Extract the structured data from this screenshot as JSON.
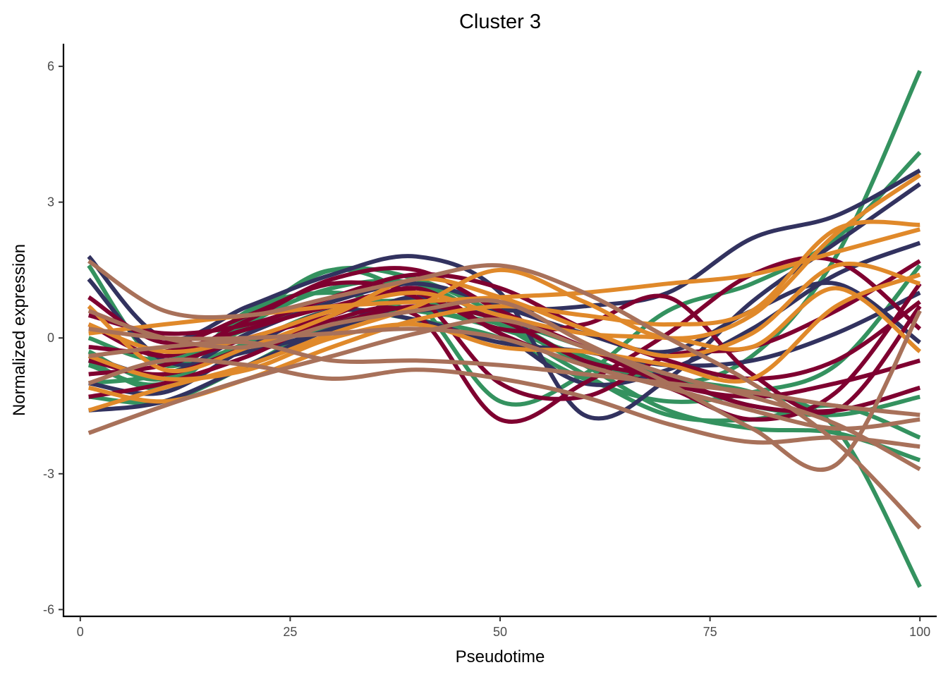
{
  "chart_data": {
    "type": "line",
    "title": "Cluster 3",
    "xlabel": "Pseudotime",
    "ylabel": "Normalized expression",
    "xlim": [
      -2,
      102
    ],
    "ylim": [
      -6.15,
      6.5
    ],
    "x_ticks": [
      0,
      25,
      50,
      75,
      100
    ],
    "x_tick_labels": [
      "0",
      "25",
      "50",
      "75",
      "100"
    ],
    "y_ticks": [
      6,
      3,
      0,
      -3,
      -6
    ],
    "y_tick_labels": [
      "6",
      "3",
      "0",
      "-3",
      "-6"
    ],
    "grid": false,
    "legend": "none",
    "colors": {
      "green": "#34925f",
      "navy": "#32325f",
      "crimson": "#7f0030",
      "orange": "#e0892a",
      "brown": "#a8715a"
    },
    "series": [
      {
        "color": "green",
        "x": [
          1,
          10,
          20,
          30,
          40,
          50,
          60,
          70,
          80,
          90,
          100
        ],
        "y": [
          -1.3,
          -1.4,
          -0.6,
          0.3,
          0.6,
          0.2,
          -0.4,
          -1.0,
          -0.4,
          1.8,
          5.9
        ]
      },
      {
        "color": "green",
        "x": [
          1,
          10,
          20,
          30,
          40,
          50,
          60,
          70,
          80,
          90,
          100
        ],
        "y": [
          1.6,
          -0.6,
          0.5,
          1.5,
          1.3,
          0.5,
          -0.5,
          -0.9,
          -1.2,
          -2.0,
          -5.5
        ]
      },
      {
        "color": "green",
        "x": [
          1,
          10,
          20,
          30,
          40,
          50,
          60,
          70,
          80,
          90,
          100
        ],
        "y": [
          -0.6,
          -1.0,
          0.4,
          1.5,
          0.8,
          -1.4,
          -0.8,
          0.6,
          1.2,
          2.2,
          4.1
        ]
      },
      {
        "color": "green",
        "x": [
          1,
          10,
          20,
          30,
          40,
          50,
          60,
          70,
          80,
          90,
          100
        ],
        "y": [
          -0.3,
          -0.9,
          0.6,
          1.0,
          0.6,
          0.3,
          -0.6,
          -1.6,
          -2.0,
          -2.1,
          -2.7
        ]
      },
      {
        "color": "green",
        "x": [
          1,
          10,
          20,
          30,
          40,
          50,
          60,
          70,
          80,
          90,
          100
        ],
        "y": [
          -1.0,
          -0.8,
          -0.1,
          0.6,
          0.4,
          0.0,
          -0.9,
          -1.4,
          -1.2,
          -0.6,
          1.6
        ]
      },
      {
        "color": "green",
        "x": [
          1,
          10,
          20,
          30,
          40,
          50,
          60,
          70,
          80,
          90,
          100
        ],
        "y": [
          0.0,
          -0.5,
          0.2,
          0.7,
          0.8,
          0.4,
          -0.2,
          -0.9,
          -1.5,
          -1.7,
          -1.3
        ]
      },
      {
        "color": "green",
        "x": [
          1,
          10,
          20,
          30,
          40,
          50,
          60,
          70,
          80,
          90,
          100
        ],
        "y": [
          -0.5,
          -1.1,
          0.3,
          1.1,
          1.2,
          0.3,
          -0.8,
          -1.7,
          -1.8,
          -1.5,
          -2.2
        ]
      },
      {
        "color": "navy",
        "x": [
          1,
          10,
          20,
          30,
          40,
          50,
          60,
          70,
          80,
          90,
          100
        ],
        "y": [
          -1.6,
          -1.4,
          -0.6,
          0.2,
          0.6,
          0.6,
          0.7,
          1.0,
          2.2,
          2.7,
          3.7
        ]
      },
      {
        "color": "navy",
        "x": [
          1,
          10,
          20,
          30,
          40,
          50,
          60,
          70,
          80,
          90,
          100
        ],
        "y": [
          1.8,
          0.0,
          0.7,
          1.4,
          1.8,
          1.0,
          -1.7,
          -0.9,
          0.8,
          2.1,
          3.4
        ]
      },
      {
        "color": "navy",
        "x": [
          1,
          10,
          20,
          30,
          40,
          50,
          60,
          70,
          80,
          90,
          100
        ],
        "y": [
          1.3,
          -0.5,
          -0.3,
          0.2,
          0.9,
          0.1,
          -1.0,
          -0.7,
          0.2,
          1.4,
          2.1
        ]
      },
      {
        "color": "navy",
        "x": [
          1,
          10,
          20,
          30,
          40,
          50,
          60,
          70,
          80,
          90,
          100
        ],
        "y": [
          -1.0,
          -1.2,
          -0.2,
          0.6,
          0.4,
          -0.1,
          -0.3,
          -0.6,
          -0.5,
          0.1,
          1.0
        ]
      },
      {
        "color": "navy",
        "x": [
          1,
          10,
          20,
          30,
          40,
          50,
          60,
          70,
          80,
          90,
          100
        ],
        "y": [
          -0.4,
          -0.8,
          0.1,
          0.8,
          1.2,
          0.7,
          0.1,
          -0.3,
          0.6,
          1.2,
          -0.1
        ]
      },
      {
        "color": "crimson",
        "x": [
          1,
          10,
          20,
          30,
          40,
          50,
          60,
          70,
          80,
          90,
          100
        ],
        "y": [
          0.3,
          -0.4,
          0.4,
          1.3,
          1.5,
          0.6,
          -0.2,
          -1.0,
          -1.3,
          -1.0,
          -0.5
        ]
      },
      {
        "color": "crimson",
        "x": [
          1,
          10,
          20,
          30,
          40,
          50,
          60,
          70,
          80,
          90,
          100
        ],
        "y": [
          -0.2,
          -0.3,
          0.2,
          0.7,
          0.9,
          -1.0,
          -1.3,
          -0.4,
          -0.2,
          0.6,
          1.7
        ]
      },
      {
        "color": "crimson",
        "x": [
          1,
          10,
          20,
          30,
          40,
          50,
          60,
          70,
          80,
          90,
          100
        ],
        "y": [
          0.9,
          -0.1,
          0.5,
          1.2,
          1.0,
          0.2,
          0.3,
          0.9,
          -0.8,
          -1.6,
          0.7
        ]
      },
      {
        "color": "crimson",
        "x": [
          1,
          10,
          20,
          30,
          40,
          50,
          60,
          70,
          80,
          90,
          100
        ],
        "y": [
          -1.3,
          -1.0,
          -0.4,
          0.4,
          0.5,
          -1.8,
          -1.0,
          0.1,
          1.4,
          1.7,
          0.2
        ]
      },
      {
        "color": "crimson",
        "x": [
          1,
          10,
          20,
          30,
          40,
          50,
          60,
          70,
          80,
          90,
          100
        ],
        "y": [
          -0.8,
          -0.6,
          0.0,
          0.5,
          1.1,
          0.1,
          -0.6,
          -1.1,
          -1.8,
          -1.2,
          1.2
        ]
      },
      {
        "color": "crimson",
        "x": [
          1,
          10,
          20,
          30,
          40,
          50,
          60,
          70,
          80,
          90,
          100
        ],
        "y": [
          0.5,
          0.1,
          0.3,
          0.9,
          1.4,
          1.1,
          0.2,
          -0.5,
          -0.9,
          -0.5,
          0.8
        ]
      },
      {
        "color": "crimson",
        "x": [
          1,
          10,
          20,
          30,
          40,
          50,
          60,
          70,
          80,
          90,
          100
        ],
        "y": [
          -0.5,
          -0.8,
          -0.2,
          0.3,
          0.7,
          0.4,
          -0.5,
          -0.9,
          -1.5,
          -1.6,
          -1.1
        ]
      },
      {
        "color": "orange",
        "x": [
          1,
          10,
          20,
          30,
          40,
          50,
          60,
          70,
          80,
          90,
          100
        ],
        "y": [
          0.1,
          0.3,
          0.5,
          0.7,
          0.8,
          0.9,
          1.0,
          1.2,
          1.4,
          1.9,
          2.4
        ]
      },
      {
        "color": "orange",
        "x": [
          1,
          10,
          20,
          30,
          40,
          50,
          60,
          70,
          80,
          90,
          100
        ],
        "y": [
          -1.6,
          -1.1,
          -0.6,
          0.1,
          0.7,
          1.5,
          0.8,
          0.0,
          0.5,
          2.3,
          3.6
        ]
      },
      {
        "color": "orange",
        "x": [
          1,
          10,
          20,
          30,
          40,
          50,
          60,
          70,
          80,
          90,
          100
        ],
        "y": [
          0.7,
          -0.7,
          -0.2,
          0.5,
          1.3,
          0.9,
          0.2,
          -0.4,
          0.1,
          1.6,
          1.2
        ]
      },
      {
        "color": "orange",
        "x": [
          1,
          10,
          20,
          30,
          40,
          50,
          60,
          70,
          80,
          90,
          100
        ],
        "y": [
          -1.1,
          -1.4,
          -0.9,
          -0.2,
          0.4,
          0.7,
          0.5,
          0.3,
          0.6,
          2.4,
          2.5
        ]
      },
      {
        "color": "orange",
        "x": [
          1,
          10,
          20,
          30,
          40,
          50,
          60,
          70,
          80,
          90,
          100
        ],
        "y": [
          0.3,
          -0.3,
          0.0,
          0.6,
          1.0,
          0.5,
          0.1,
          0.0,
          -0.2,
          1.1,
          -0.3
        ]
      },
      {
        "color": "orange",
        "x": [
          1,
          10,
          20,
          30,
          40,
          50,
          60,
          70,
          80,
          90,
          100
        ],
        "y": [
          -0.4,
          -0.9,
          -0.7,
          0.0,
          0.3,
          -0.2,
          -0.3,
          -0.6,
          -0.9,
          0.7,
          1.4
        ]
      },
      {
        "color": "brown",
        "x": [
          1,
          10,
          20,
          30,
          40,
          50,
          60,
          70,
          80,
          90,
          100
        ],
        "y": [
          1.7,
          0.6,
          0.5,
          0.9,
          1.3,
          1.6,
          1.0,
          0.0,
          -1.0,
          -2.3,
          -4.2
        ]
      },
      {
        "color": "brown",
        "x": [
          1,
          10,
          20,
          30,
          40,
          50,
          60,
          70,
          80,
          90,
          100
        ],
        "y": [
          -2.1,
          -1.5,
          -0.9,
          -0.4,
          0.1,
          0.4,
          -0.2,
          -0.8,
          -1.3,
          -1.9,
          -2.9
        ]
      },
      {
        "color": "brown",
        "x": [
          1,
          10,
          20,
          30,
          40,
          50,
          60,
          70,
          80,
          90,
          100
        ],
        "y": [
          -0.4,
          -0.2,
          -0.1,
          -0.5,
          -0.5,
          -0.6,
          -0.8,
          -1.0,
          -1.2,
          -1.5,
          -1.7
        ]
      },
      {
        "color": "brown",
        "x": [
          1,
          10,
          20,
          30,
          40,
          50,
          60,
          70,
          80,
          90,
          100
        ],
        "y": [
          0.6,
          0.0,
          -0.2,
          0.3,
          0.6,
          0.8,
          -0.1,
          -1.0,
          -2.0,
          -2.8,
          0.6
        ]
      },
      {
        "color": "brown",
        "x": [
          1,
          10,
          20,
          30,
          40,
          50,
          60,
          70,
          80,
          90,
          100
        ],
        "y": [
          -1.0,
          -0.5,
          -0.6,
          -0.9,
          -0.7,
          -0.9,
          -1.3,
          -1.9,
          -2.3,
          -2.2,
          -2.4
        ]
      },
      {
        "color": "brown",
        "x": [
          1,
          10,
          20,
          30,
          40,
          50,
          60,
          70,
          80,
          90,
          100
        ],
        "y": [
          0.2,
          0.0,
          0.0,
          0.1,
          0.2,
          0.0,
          -0.6,
          -1.1,
          -1.6,
          -2.0,
          -1.8
        ]
      }
    ]
  }
}
